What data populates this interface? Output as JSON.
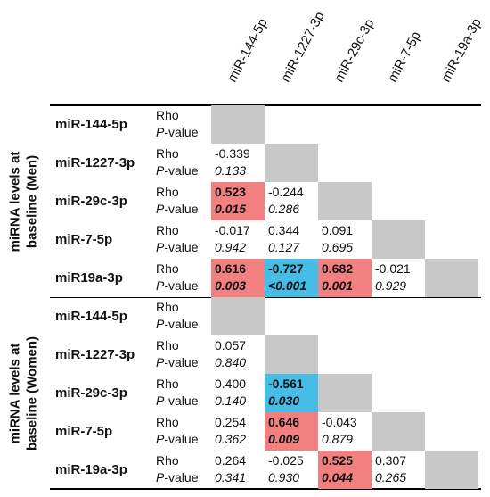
{
  "columns": [
    "miR-144-5p",
    "miR-1227-3p",
    "miR-29c-3p",
    "miR-7-5p",
    "miR-19a-3p"
  ],
  "row_labels": {
    "rho": "Rho",
    "p_prefix": "P",
    "p_suffix": "-value"
  },
  "groups": [
    {
      "label_line1": "miRNA levels at",
      "label_line2": "baseline (Men)",
      "rows": [
        {
          "name": "miR-144-5p",
          "cells": [
            {
              "type": "diag"
            }
          ]
        },
        {
          "name": "miR-1227-3p",
          "cells": [
            {
              "type": "value",
              "rho": "-0.339",
              "p": "0.133",
              "highlight": "none"
            },
            {
              "type": "diag"
            }
          ]
        },
        {
          "name": "miR-29c-3p",
          "cells": [
            {
              "type": "value",
              "rho": "0.523",
              "p": "0.015",
              "highlight": "red"
            },
            {
              "type": "value",
              "rho": "-0.244",
              "p": "0.286",
              "highlight": "none"
            },
            {
              "type": "diag"
            }
          ]
        },
        {
          "name": "miR-7-5p",
          "cells": [
            {
              "type": "value",
              "rho": "-0.017",
              "p": "0.942",
              "highlight": "none"
            },
            {
              "type": "value",
              "rho": "0.344",
              "p": "0.127",
              "highlight": "none"
            },
            {
              "type": "value",
              "rho": "0.091",
              "p": "0.695",
              "highlight": "none"
            },
            {
              "type": "diag"
            }
          ]
        },
        {
          "name": "miR19a-3p",
          "cells": [
            {
              "type": "value",
              "rho": "0.616",
              "p": "0.003",
              "highlight": "red"
            },
            {
              "type": "value",
              "rho": "-0.727",
              "p": "<0.001",
              "highlight": "blue"
            },
            {
              "type": "value",
              "rho": "0.682",
              "p": "0.001",
              "highlight": "red"
            },
            {
              "type": "value",
              "rho": "-0.021",
              "p": "0.929",
              "highlight": "none"
            },
            {
              "type": "diag"
            }
          ]
        }
      ]
    },
    {
      "label_line1": "miRNA levels at",
      "label_line2": "baseline (Women)",
      "rows": [
        {
          "name": "miR-144-5p",
          "cells": [
            {
              "type": "diag"
            }
          ]
        },
        {
          "name": "miR-1227-3p",
          "cells": [
            {
              "type": "value",
              "rho": "0.057",
              "p": "0.840",
              "highlight": "none"
            },
            {
              "type": "diag"
            }
          ]
        },
        {
          "name": "miR-29c-3p",
          "cells": [
            {
              "type": "value",
              "rho": "0.400",
              "p": "0.140",
              "highlight": "none"
            },
            {
              "type": "value",
              "rho": "-0.561",
              "p": "0.030",
              "highlight": "blue"
            },
            {
              "type": "diag"
            }
          ]
        },
        {
          "name": "miR-7-5p",
          "cells": [
            {
              "type": "value",
              "rho": "0.254",
              "p": "0.362",
              "highlight": "none"
            },
            {
              "type": "value",
              "rho": "0.646",
              "p": "0.009",
              "highlight": "red"
            },
            {
              "type": "value",
              "rho": "-0.043",
              "p": "0.879",
              "highlight": "none"
            },
            {
              "type": "diag"
            }
          ]
        },
        {
          "name": "miR-19a-3p",
          "cells": [
            {
              "type": "value",
              "rho": "0.264",
              "p": "0.341",
              "highlight": "none"
            },
            {
              "type": "value",
              "rho": "-0.025",
              "p": "0.930",
              "highlight": "none"
            },
            {
              "type": "value",
              "rho": "0.525",
              "p": "0.044",
              "highlight": "red"
            },
            {
              "type": "value",
              "rho": "0.307",
              "p": "0.265",
              "highlight": "none"
            },
            {
              "type": "diag"
            }
          ]
        }
      ]
    }
  ],
  "colors": {
    "positive_significant": "#f28080",
    "negative_significant": "#45bde6",
    "diagonal": "#c8c8c8"
  }
}
